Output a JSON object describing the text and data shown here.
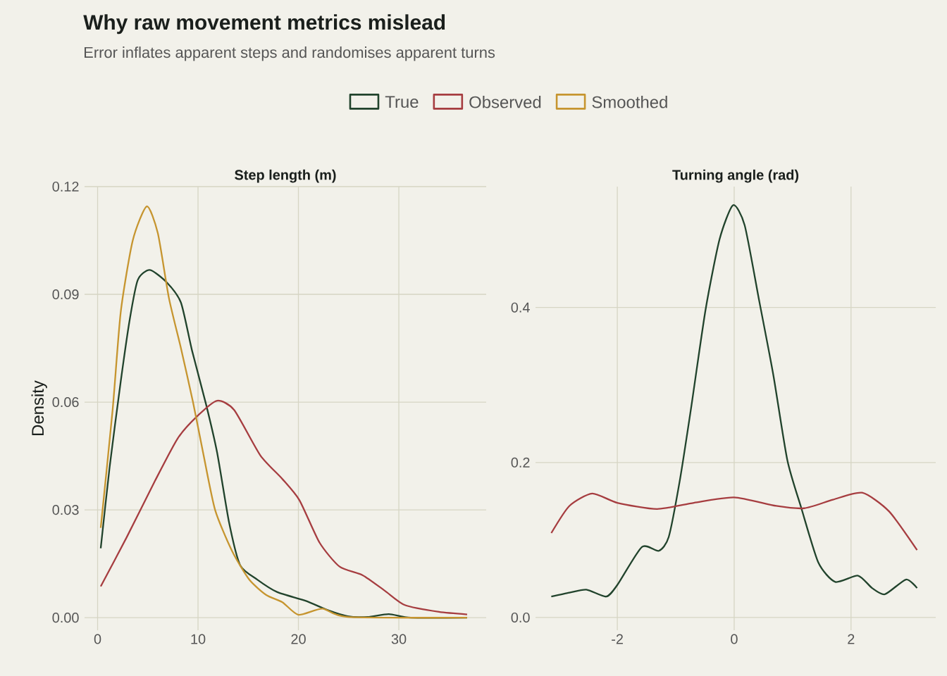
{
  "chart_data": [
    {
      "type": "other",
      "title": "Why raw movement metrics mislead",
      "subtitle": "Error inflates apparent steps and randomises apparent turns"
    },
    {
      "type": "line",
      "title": "Step length (m)",
      "ylabel": "Density",
      "xlim": [
        -1.3,
        38.7
      ],
      "ylim": [
        -0.0035,
        0.12
      ],
      "xticks": [
        0,
        10,
        20,
        30
      ],
      "yticks": [
        {
          "value": 0,
          "label": "0.00"
        },
        {
          "value": 0.03,
          "label": "0.03"
        },
        {
          "value": 0.06,
          "label": "0.06"
        },
        {
          "value": 0.09,
          "label": "0.09"
        },
        {
          "value": 0.12,
          "label": "0.12"
        }
      ],
      "grid": true,
      "legend": "top",
      "line_style": "solid",
      "series": [
        {
          "name": "True",
          "color": "#21432c",
          "x": [
            0.31,
            1.2,
            2.3,
            3.2,
            4.0,
            5.2,
            6.9,
            8.3,
            9.4,
            10.8,
            11.9,
            13.1,
            14.2,
            15.9,
            17.9,
            20.7,
            23.0,
            24.9,
            26.9,
            29.0,
            31.2,
            36.8
          ],
          "values": [
            0.0193,
            0.042,
            0.0657,
            0.083,
            0.094,
            0.0968,
            0.0933,
            0.0877,
            0.0744,
            0.0594,
            0.046,
            0.0264,
            0.0146,
            0.0106,
            0.0071,
            0.0047,
            0.002,
            0.0004,
            0.0002,
            0.001,
            0.0,
            0.0
          ]
        },
        {
          "name": "Observed",
          "color": "#a63d40",
          "x": [
            0.31,
            2.9,
            5.7,
            8.0,
            10.0,
            11.9,
            13.6,
            16.2,
            18.4,
            20.1,
            22.1,
            24.1,
            26.4,
            28.6,
            30.6,
            34.0,
            36.8
          ],
          "values": [
            0.0087,
            0.0224,
            0.038,
            0.05,
            0.0563,
            0.0604,
            0.0578,
            0.0452,
            0.0386,
            0.0327,
            0.0209,
            0.0142,
            0.0118,
            0.0075,
            0.0035,
            0.0016,
            0.0009
          ]
        },
        {
          "name": "Smoothed",
          "color": "#c6952f",
          "x": [
            0.31,
            1.5,
            2.3,
            3.5,
            4.9,
            6.0,
            7.1,
            8.3,
            9.5,
            10.5,
            11.7,
            13.4,
            15.1,
            16.8,
            18.4,
            20.0,
            22.4,
            24.9,
            36.8
          ],
          "values": [
            0.025,
            0.058,
            0.085,
            0.105,
            0.1145,
            0.107,
            0.089,
            0.075,
            0.06,
            0.046,
            0.03,
            0.0185,
            0.0106,
            0.0063,
            0.0043,
            0.0008,
            0.0025,
            0.0002,
            0.0
          ]
        }
      ]
    },
    {
      "type": "line",
      "title": "Turning angle (rad)",
      "xlim": [
        -3.4,
        3.45
      ],
      "ylim": [
        -0.0164,
        0.556
      ],
      "xticks": [
        -2,
        0,
        2
      ],
      "yticks": [
        {
          "value": 0,
          "label": "0.0"
        },
        {
          "value": 0.2,
          "label": "0.2"
        },
        {
          "value": 0.4,
          "label": "0.4"
        }
      ],
      "grid": true,
      "line_style": "solid",
      "series": [
        {
          "color": "#21432c",
          "x": [
            -3.13,
            -2.82,
            -2.53,
            -2.19,
            -2.0,
            -1.58,
            -1.29,
            -1.12,
            -0.93,
            -0.74,
            -0.49,
            -0.25,
            -0.02,
            0.18,
            0.43,
            0.67,
            0.91,
            1.15,
            1.44,
            1.73,
            2.12,
            2.36,
            2.58,
            2.94,
            3.13
          ],
          "values": [
            0.027,
            0.032,
            0.036,
            0.027,
            0.042,
            0.091,
            0.086,
            0.104,
            0.177,
            0.269,
            0.397,
            0.488,
            0.532,
            0.506,
            0.408,
            0.313,
            0.203,
            0.141,
            0.071,
            0.046,
            0.054,
            0.038,
            0.03,
            0.049,
            0.038
          ]
        },
        {
          "color": "#a63d40",
          "x": [
            -3.13,
            -2.82,
            -2.43,
            -2.0,
            -1.32,
            -0.69,
            0,
            0.72,
            1.2,
            1.69,
            2.19,
            2.65,
            3.13
          ],
          "values": [
            0.109,
            0.144,
            0.16,
            0.148,
            0.14,
            0.148,
            0.155,
            0.144,
            0.141,
            0.152,
            0.161,
            0.137,
            0.087
          ]
        }
      ]
    }
  ]
}
